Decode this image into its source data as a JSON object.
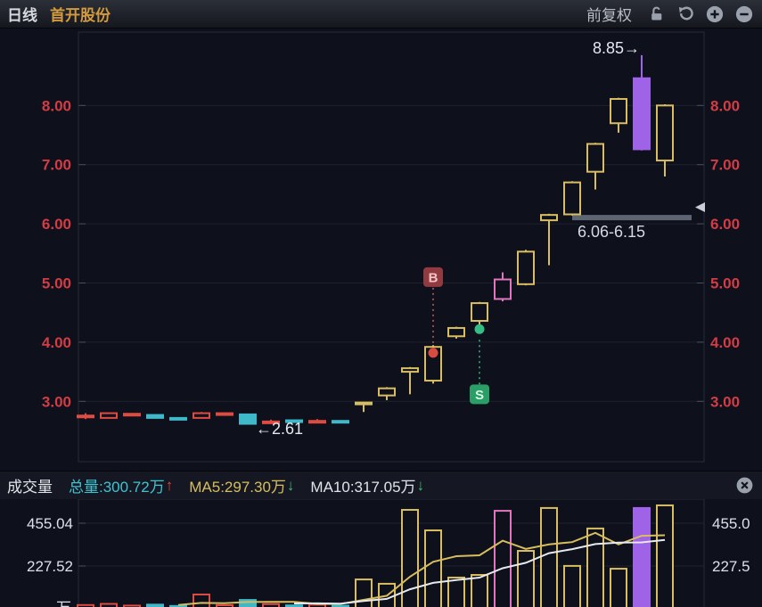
{
  "titlebar": {
    "period": "日线",
    "stock": "首开股份",
    "adjust": "前复权"
  },
  "volume_header": {
    "title": "成交量",
    "total": "总量:300.72万",
    "total_arrow": "↑",
    "ma5": "MA5:297.30万",
    "ma5_arrow": "↓",
    "ma10": "MA10:317.05万",
    "ma10_arrow": "↓"
  },
  "colors": {
    "background": "#0e101b",
    "grid": "#1d2230",
    "border": "#272c3a",
    "axis_price": "#d43c45",
    "axis_volume": "#dce0e8",
    "up_red": "#de4b41",
    "down_cyan": "#3fb9ca",
    "limit_gold": "#d9bd62",
    "event_pink": "#e077be",
    "select_purple": "#9f63e8",
    "ma5_line": "#d7bd5e",
    "ma10_line": "#e6e9ee",
    "buy_box": "#913a40",
    "buy_text": "#f6c4c4",
    "buy_dot": "#d94b41",
    "sell_box": "#2a9e66",
    "sell_text": "#d6f6e4",
    "sell_dot": "#36bd85",
    "gap_band": "#5e6572",
    "annotation_text": "#e4e8ef",
    "stock_name": "#d49a3c",
    "icon_gray": "#9ba1ac"
  },
  "chart_data": {
    "type": "candlestick",
    "title": "首开股份 日线 前复权",
    "legend_position": "none",
    "grid": true,
    "price_axis": {
      "tick_values": [
        8,
        7,
        6,
        5,
        4,
        3
      ],
      "tick_labels": [
        "8.00",
        "7.00",
        "6.00",
        "5.00",
        "4.00",
        "3.00"
      ],
      "ylim": [
        1.98,
        9.24
      ]
    },
    "volume_axis": {
      "tick_values": [
        455.04,
        227.52
      ],
      "labels_left": [
        "455.04",
        "227.52"
      ],
      "labels_right": [
        "455.0",
        "227.5"
      ],
      "vlim": [
        0,
        583
      ],
      "unit": "万"
    },
    "styles": {
      "red": {
        "stroke": "#de4b41",
        "solid": false
      },
      "cyan": {
        "stroke": "#3fb9ca",
        "solid": true
      },
      "yellow": {
        "stroke": "#d9bd62",
        "solid": false
      },
      "pink": {
        "stroke": "#e077be",
        "solid": false
      },
      "purple": {
        "stroke": "#9f63e8",
        "solid": true
      }
    },
    "candles": [
      {
        "o": 2.74,
        "h": 2.8,
        "l": 2.7,
        "c": 2.76,
        "s": "red"
      },
      {
        "o": 2.72,
        "h": 2.81,
        "l": 2.71,
        "c": 2.8,
        "s": "red"
      },
      {
        "o": 2.77,
        "h": 2.8,
        "l": 2.76,
        "c": 2.79,
        "s": "red"
      },
      {
        "o": 2.77,
        "h": 2.78,
        "l": 2.71,
        "c": 2.72,
        "s": "cyan"
      },
      {
        "o": 2.72,
        "h": 2.73,
        "l": 2.68,
        "c": 2.69,
        "s": "cyan"
      },
      {
        "o": 2.72,
        "h": 2.82,
        "l": 2.71,
        "c": 2.8,
        "s": "red"
      },
      {
        "o": 2.78,
        "h": 2.81,
        "l": 2.77,
        "c": 2.8,
        "s": "red"
      },
      {
        "o": 2.78,
        "h": 2.79,
        "l": 2.61,
        "c": 2.62,
        "s": "cyan"
      },
      {
        "o": 2.64,
        "h": 2.69,
        "l": 2.62,
        "c": 2.66,
        "s": "red"
      },
      {
        "o": 2.68,
        "h": 2.69,
        "l": 2.64,
        "c": 2.65,
        "s": "cyan"
      },
      {
        "o": 2.65,
        "h": 2.7,
        "l": 2.63,
        "c": 2.67,
        "s": "red"
      },
      {
        "o": 2.67,
        "h": 2.68,
        "l": 2.64,
        "c": 2.65,
        "s": "cyan"
      },
      {
        "o": 2.96,
        "h": 2.99,
        "l": 2.82,
        "c": 2.98,
        "s": "yellow"
      },
      {
        "o": 3.1,
        "h": 3.24,
        "l": 3.02,
        "c": 3.22,
        "s": "yellow"
      },
      {
        "o": 3.5,
        "h": 3.58,
        "l": 3.12,
        "c": 3.56,
        "s": "yellow"
      },
      {
        "o": 3.35,
        "h": 3.95,
        "l": 3.3,
        "c": 3.92,
        "s": "yellow"
      },
      {
        "o": 4.1,
        "h": 4.26,
        "l": 4.06,
        "c": 4.24,
        "s": "yellow"
      },
      {
        "o": 4.36,
        "h": 4.68,
        "l": 4.27,
        "c": 4.66,
        "s": "yellow"
      },
      {
        "o": 4.73,
        "h": 5.18,
        "l": 4.69,
        "c": 5.06,
        "s": "pink"
      },
      {
        "o": 4.98,
        "h": 5.56,
        "l": 4.96,
        "c": 5.53,
        "s": "yellow"
      },
      {
        "o": 6.06,
        "h": 6.17,
        "l": 5.3,
        "c": 6.15,
        "s": "yellow"
      },
      {
        "o": 6.16,
        "h": 6.72,
        "l": 6.14,
        "c": 6.7,
        "s": "yellow"
      },
      {
        "o": 6.88,
        "h": 7.37,
        "l": 6.58,
        "c": 7.35,
        "s": "yellow"
      },
      {
        "o": 7.7,
        "h": 8.13,
        "l": 7.54,
        "c": 8.11,
        "s": "yellow"
      },
      {
        "o": 8.46,
        "h": 8.85,
        "l": 7.24,
        "c": 7.26,
        "s": "purple"
      },
      {
        "o": 7.07,
        "h": 8.02,
        "l": 6.8,
        "c": 8.0,
        "s": "yellow"
      }
    ],
    "volumes": [
      {
        "v": 20,
        "s": "red"
      },
      {
        "v": 26,
        "s": "red"
      },
      {
        "v": 17,
        "s": "red"
      },
      {
        "v": 22,
        "s": "cyan"
      },
      {
        "v": 15,
        "s": "cyan"
      },
      {
        "v": 76,
        "s": "red"
      },
      {
        "v": 19,
        "s": "red"
      },
      {
        "v": 47,
        "s": "cyan"
      },
      {
        "v": 25,
        "s": "red"
      },
      {
        "v": 18,
        "s": "cyan"
      },
      {
        "v": 22,
        "s": "red"
      },
      {
        "v": 16,
        "s": "cyan"
      },
      {
        "v": 156,
        "s": "yellow"
      },
      {
        "v": 133,
        "s": "yellow"
      },
      {
        "v": 526,
        "s": "yellow"
      },
      {
        "v": 417,
        "s": "yellow"
      },
      {
        "v": 166,
        "s": "yellow"
      },
      {
        "v": 180,
        "s": "yellow"
      },
      {
        "v": 521,
        "s": "pink"
      },
      {
        "v": 308,
        "s": "yellow"
      },
      {
        "v": 536,
        "s": "yellow"
      },
      {
        "v": 228,
        "s": "yellow"
      },
      {
        "v": 427,
        "s": "yellow"
      },
      {
        "v": 213,
        "s": "yellow"
      },
      {
        "v": 536,
        "s": "purple"
      },
      {
        "v": 550,
        "s": "yellow"
      }
    ],
    "moving_averages": {
      "ma5_window": 5,
      "ma10_window": 10
    },
    "annotations": {
      "high": {
        "text": "8.85→",
        "index": 24,
        "price": 8.85
      },
      "low": {
        "text": "←2.61",
        "index": 7,
        "price": 2.61
      },
      "gap": {
        "text": "6.06-6.15",
        "from_index": 20,
        "low": 6.06,
        "high": 6.15,
        "marker_price": 6.28
      },
      "buy": {
        "label": "B",
        "index": 15,
        "box_price": 5.1,
        "dot_price": 3.82
      },
      "sell": {
        "label": "S",
        "index": 17,
        "box_price": 3.12,
        "dot_price": 4.22
      }
    }
  }
}
